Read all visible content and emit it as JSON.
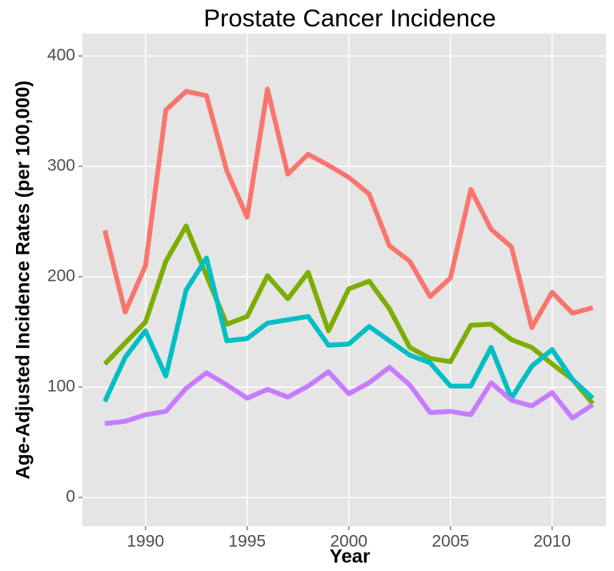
{
  "chart_data": {
    "type": "line",
    "title": "Prostate Cancer Incidence",
    "xlabel": "Year",
    "ylabel": "Age-Adjusted Incidence Rates (per 100,000)",
    "x": [
      1988,
      1989,
      1990,
      1991,
      1992,
      1993,
      1994,
      1995,
      1996,
      1997,
      1998,
      1999,
      2000,
      2001,
      2002,
      2003,
      2004,
      2005,
      2006,
      2007,
      2008,
      2009,
      2010,
      2011,
      2012
    ],
    "series": [
      {
        "color": "#F8766D",
        "values": [
          242,
          168,
          210,
          351,
          368,
          364,
          296,
          254,
          370,
          293,
          311,
          301,
          290,
          275,
          228,
          214,
          182,
          199,
          279,
          243,
          227,
          154,
          186,
          167,
          172
        ]
      },
      {
        "color": "#7CAE00",
        "values": [
          121,
          140,
          159,
          214,
          246,
          201,
          157,
          164,
          201,
          180,
          204,
          151,
          189,
          196,
          171,
          136,
          126,
          123,
          156,
          157,
          143,
          136,
          121,
          107,
          85
        ]
      },
      {
        "color": "#00BFC4",
        "values": [
          87,
          127,
          151,
          110,
          188,
          217,
          142,
          144,
          158,
          161,
          164,
          138,
          139,
          155,
          142,
          129,
          122,
          101,
          101,
          136,
          90,
          119,
          134,
          107,
          90
        ]
      },
      {
        "color": "#C77CFF",
        "values": [
          67,
          69,
          75,
          78,
          99,
          113,
          102,
          90,
          98,
          91,
          101,
          114,
          94,
          104,
          118,
          102,
          77,
          78,
          75,
          104,
          88,
          83,
          95,
          72,
          84
        ]
      }
    ],
    "xlim": [
      1986.9,
      2012.65
    ],
    "xticks": [
      1990,
      1995,
      2000,
      2005,
      2010
    ],
    "ylim": [
      -26,
      420.3
    ],
    "yticks": [
      0,
      100,
      200,
      300,
      400
    ],
    "grid": true
  }
}
